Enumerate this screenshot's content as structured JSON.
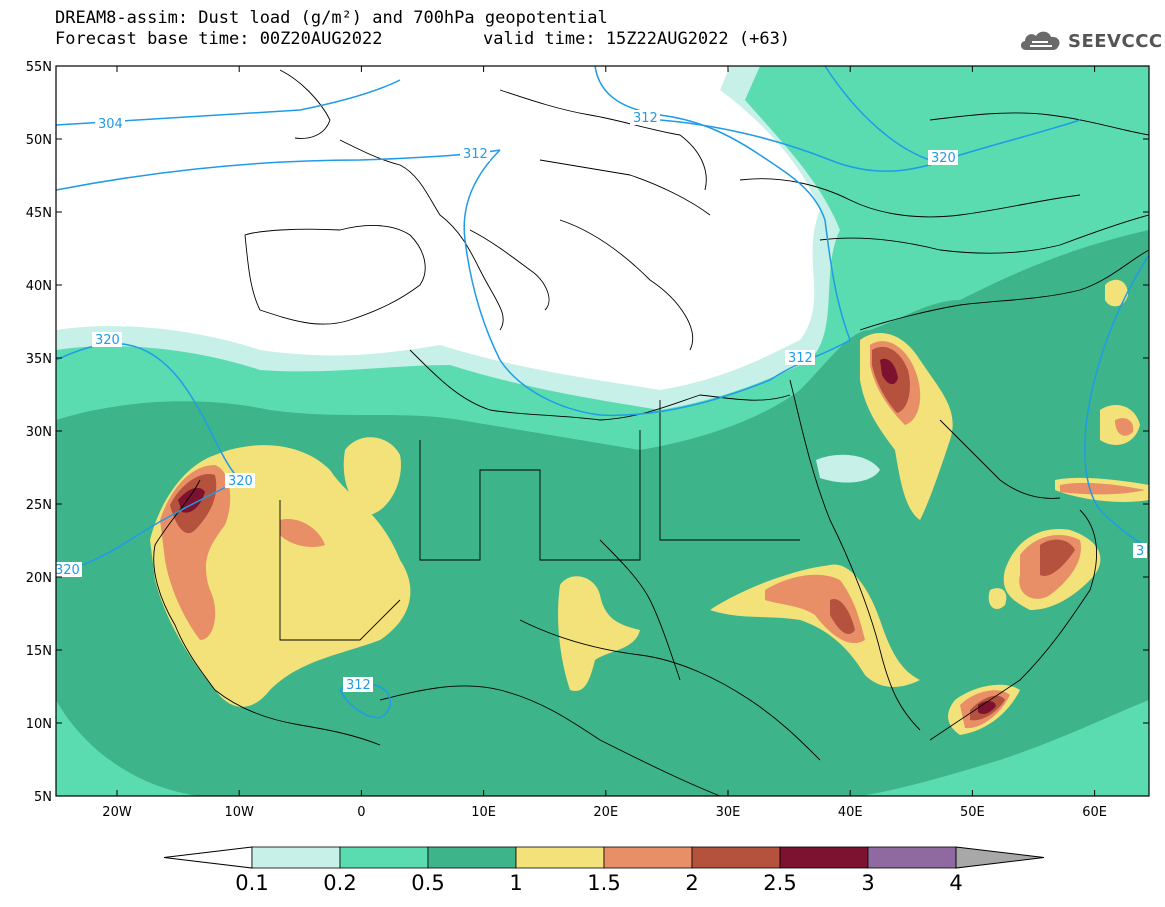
{
  "header": {
    "title_line1": "DREAM8-assim: Dust load (g/m²) and 700hPa geopotential",
    "title_line2": "Forecast base time: 00Z20AUG2022",
    "valid_time": "valid time: 15Z22AUG2022 (+63)"
  },
  "logo": {
    "text": "SEEVCCC",
    "icon": "cloud-icon"
  },
  "axes": {
    "lat_labels": [
      "55N",
      "50N",
      "45N",
      "40N",
      "35N",
      "30N",
      "25N",
      "20N",
      "15N",
      "10N",
      "5N"
    ],
    "lon_labels": [
      "20W",
      "10W",
      "0",
      "10E",
      "20E",
      "30E",
      "40E",
      "50E",
      "60E"
    ]
  },
  "contour_labels": [
    {
      "text": "304"
    },
    {
      "text": "312"
    },
    {
      "text": "312"
    },
    {
      "text": "320"
    },
    {
      "text": "320"
    },
    {
      "text": "320"
    },
    {
      "text": "320"
    },
    {
      "text": "312"
    },
    {
      "text": "312"
    },
    {
      "text": "3"
    }
  ],
  "colorbar": {
    "labels": [
      "0.1",
      "0.2",
      "0.5",
      "1",
      "1.5",
      "2",
      "2.5",
      "3",
      "4"
    ],
    "colors": {
      "b0": "#c6f0e8",
      "b1": "#5bdcb0",
      "b2": "#3db48a",
      "b3": "#f3e27a",
      "b4": "#e88f68",
      "b5": "#b5523e",
      "b6": "#7d1230",
      "b7": "#8e6aa0",
      "over": "#a8a8a8",
      "under": "#ffffff"
    }
  },
  "colors": {
    "geopotential": "#1f9be8",
    "coast": "#000000"
  }
}
